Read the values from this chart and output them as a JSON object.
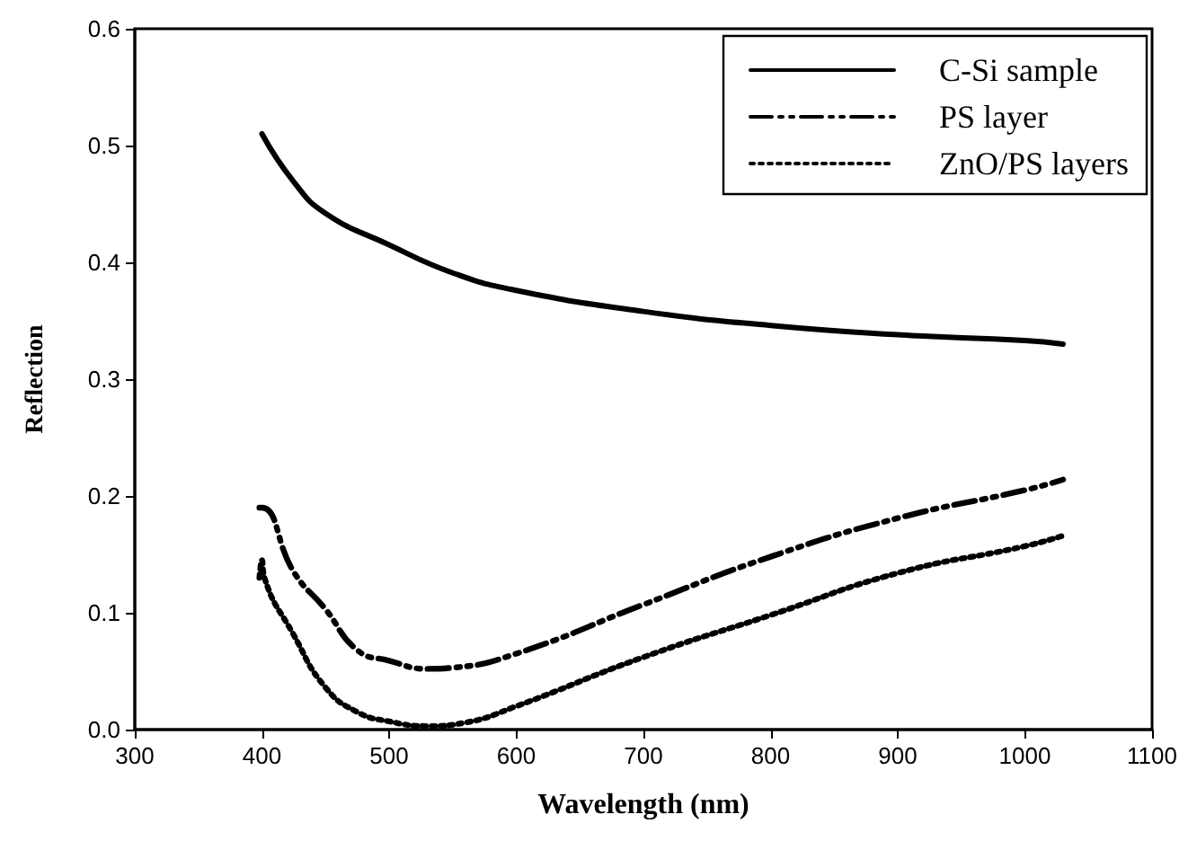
{
  "chart_data": {
    "type": "line",
    "xlabel": "Wavelength (nm)",
    "ylabel": "Reflection",
    "xlim": [
      300,
      1100
    ],
    "xticks": [
      300,
      400,
      500,
      600,
      700,
      800,
      900,
      1000,
      1100
    ],
    "ylim": [
      0,
      0.6
    ],
    "yticks": [
      {
        "value": 0,
        "label": "0.0"
      },
      0.1,
      0.2,
      0.3,
      0.4,
      0.5,
      0.6
    ],
    "grid": false,
    "legend": "top right",
    "marker": "none",
    "series": [
      {
        "name": "C-Si sample",
        "color": "#000000",
        "line_style": "solid",
        "x": [
          400,
          425,
          450,
          500,
          550,
          600,
          700,
          800,
          900,
          1000,
          1030
        ],
        "values": [
          0.51,
          0.469,
          0.442,
          0.415,
          0.391,
          0.376,
          0.358,
          0.346,
          0.338,
          0.333,
          0.33
        ]
      },
      {
        "name": "PS layer",
        "color": "#000000",
        "line_style": "dashed",
        "x": [
          398,
          400,
          425,
          450,
          475,
          500,
          530,
          550,
          600,
          700,
          800,
          900,
          1000,
          1030
        ],
        "values": [
          0.19,
          0.19,
          0.135,
          0.103,
          0.068,
          0.059,
          0.052,
          0.053,
          0.065,
          0.107,
          0.148,
          0.181,
          0.205,
          0.214
        ]
      },
      {
        "name": "ZnO/PS layers",
        "color": "#000000",
        "line_style": "dotted",
        "x": [
          398,
          400,
          402,
          425,
          450,
          475,
          500,
          530,
          560,
          600,
          700,
          800,
          900,
          1000,
          1030
        ],
        "values": [
          0.13,
          0.145,
          0.13,
          0.081,
          0.036,
          0.015,
          0.007,
          0.003,
          0.006,
          0.02,
          0.062,
          0.098,
          0.134,
          0.157,
          0.166
        ]
      }
    ]
  }
}
